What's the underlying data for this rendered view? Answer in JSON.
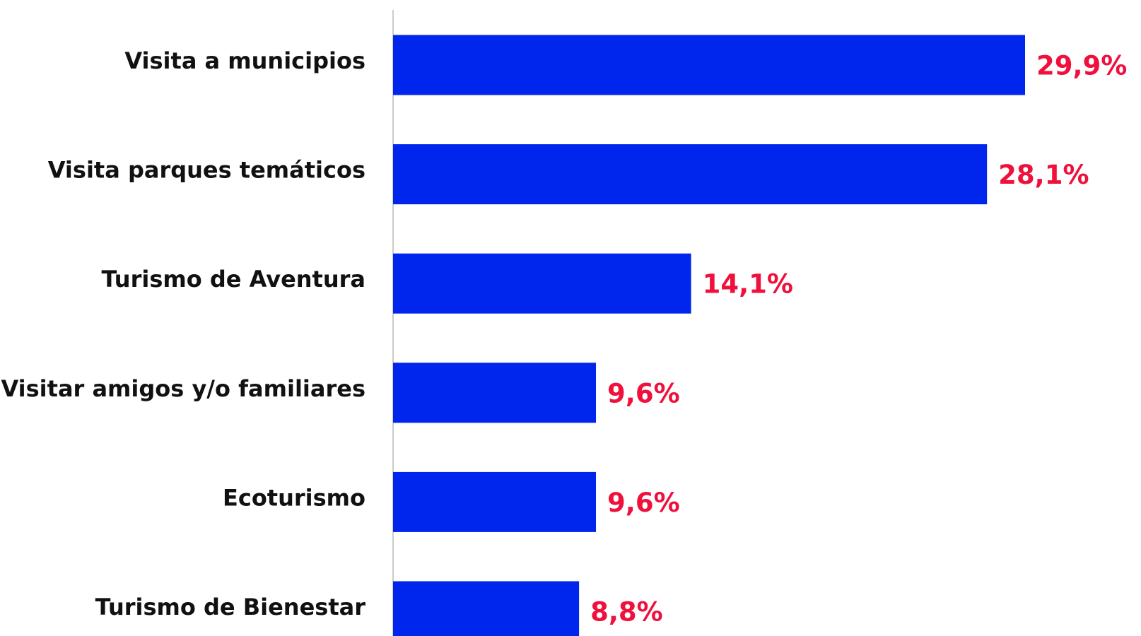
{
  "chart_data": {
    "type": "bar",
    "orientation": "horizontal",
    "categories": [
      "Visita a municipios",
      "Visita parques temáticos",
      "Turismo de Aventura",
      "Visitar amigos y/o familiares",
      "Ecoturismo",
      "Turismo de Bienestar"
    ],
    "values": [
      29.9,
      28.1,
      14.1,
      9.6,
      9.6,
      8.8
    ],
    "value_labels": [
      "29,9%",
      "28,1%",
      "14,1%",
      "9,6%",
      "9,6%",
      "8,8%"
    ],
    "color": "#0026ee",
    "label_color": "#f0103c"
  }
}
